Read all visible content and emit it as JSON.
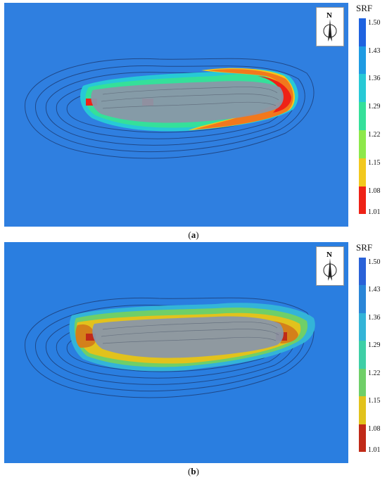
{
  "panels": [
    {
      "caption_open": "(",
      "caption_letter": "a",
      "caption_close": ")",
      "compass_label": "N",
      "legend": {
        "title": "SRF",
        "ticks": [
          "1.50",
          "1.43",
          "1.36",
          "1.29",
          "1.22",
          "1.15",
          "1.08",
          "1.01"
        ],
        "colors": [
          "#1f63e0",
          "#1e9be3",
          "#27c9d6",
          "#35e09a",
          "#8de84a",
          "#f2c81e",
          "#f2781c",
          "#ee2216"
        ]
      },
      "background_color": "#2f7fe0"
    },
    {
      "caption_open": "(",
      "caption_letter": "b",
      "caption_close": ")",
      "compass_label": "N",
      "legend": {
        "title": "SRF",
        "ticks": [
          "1.50",
          "1.43",
          "1.36",
          "1.29",
          "1.22",
          "1.15",
          "1.08",
          "1.01"
        ],
        "colors": [
          "#2a62d8",
          "#2a86d8",
          "#33b4d8",
          "#3ecfa6",
          "#6fcf68",
          "#e2c21c",
          "#d4801a",
          "#c02a18"
        ]
      },
      "background_color": "#2a7ee0"
    }
  ]
}
